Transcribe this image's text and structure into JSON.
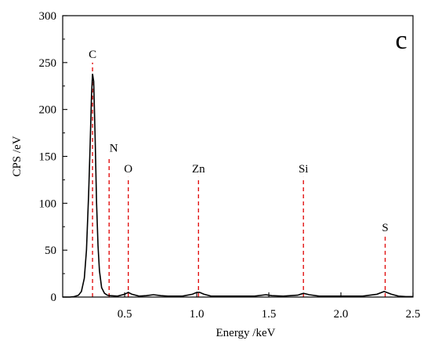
{
  "chart_data": {
    "type": "line",
    "title": "",
    "panel_label": "c",
    "xlabel": "Energy /keV",
    "ylabel": "CPS /eV",
    "xlim": [
      0.07,
      2.5
    ],
    "ylim": [
      0,
      300
    ],
    "x_ticks": [
      0.5,
      1.0,
      1.5,
      2.0,
      2.5
    ],
    "x_tick_labels": [
      "0.5",
      "1.0",
      "1.5",
      "2.0",
      "2.5"
    ],
    "y_ticks": [
      0,
      50,
      100,
      150,
      200,
      250,
      300
    ],
    "y_tick_labels": [
      "0",
      "50",
      "100",
      "150",
      "200",
      "250",
      "300"
    ],
    "grid": false,
    "line_color": "#000000",
    "marker_color": "#e00000",
    "series": [
      {
        "x": [
          0.07,
          0.12,
          0.15,
          0.18,
          0.2,
          0.22,
          0.235,
          0.25,
          0.26,
          0.27,
          0.277,
          0.285,
          0.295,
          0.305,
          0.315,
          0.325,
          0.34,
          0.36,
          0.38,
          0.4,
          0.45,
          0.5,
          0.525,
          0.55,
          0.6,
          0.65,
          0.7,
          0.75,
          0.8,
          0.9,
          0.97,
          1.0,
          1.02,
          1.05,
          1.1,
          1.2,
          1.3,
          1.4,
          1.48,
          1.52,
          1.6,
          1.7,
          1.74,
          1.78,
          1.85,
          1.95,
          2.05,
          2.15,
          2.25,
          2.3,
          2.35,
          2.4,
          2.45,
          2.5
        ],
        "y": [
          0,
          0,
          0.5,
          2,
          6,
          20,
          50,
          110,
          160,
          215,
          238,
          230,
          170,
          100,
          55,
          28,
          10,
          4,
          2,
          1.5,
          1,
          3,
          5,
          3,
          1,
          1.5,
          2.5,
          1.5,
          1,
          1,
          3,
          5,
          5,
          3,
          1,
          1,
          1,
          1,
          2.5,
          1.5,
          1,
          2,
          4,
          2.5,
          1,
          1,
          1,
          1,
          3,
          6,
          3,
          1,
          0.5,
          0.5
        ]
      }
    ],
    "peaks": [
      {
        "element": "C",
        "energy": 0.277,
        "marker_top": 250
      },
      {
        "element": "N",
        "energy": 0.392,
        "marker_top": 150
      },
      {
        "element": "O",
        "energy": 0.525,
        "marker_top": 128
      },
      {
        "element": "Zn",
        "energy": 1.012,
        "marker_top": 128
      },
      {
        "element": "Si",
        "energy": 1.74,
        "marker_top": 128
      },
      {
        "element": "S",
        "energy": 2.307,
        "marker_top": 65
      }
    ]
  }
}
